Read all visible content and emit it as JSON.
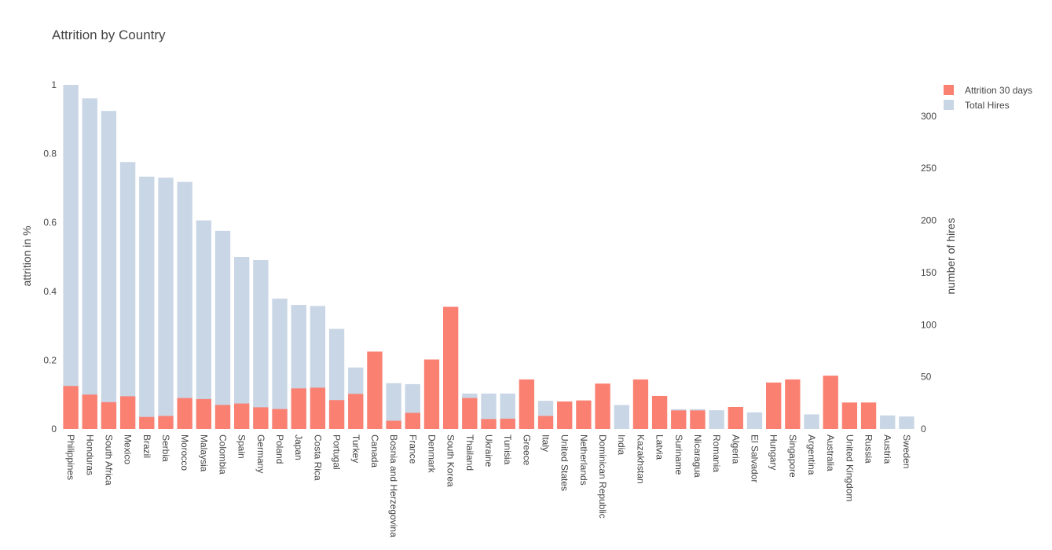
{
  "chart_data": {
    "type": "bar",
    "title": "Attrition by Country",
    "categories": [
      "Philippines",
      "Honduras",
      "South Africa",
      "Mexico",
      "Brazil",
      "Serbia",
      "Morocco",
      "Malaysia",
      "Colombia",
      "Spain",
      "Germany",
      "Poland",
      "Japan",
      "Costa Rica",
      "Portugal",
      "Turkey",
      "Canada",
      "Bosnia and Herzegovina",
      "France",
      "Denmark",
      "South Korea",
      "Thailand",
      "Ukraine",
      "Tunisia",
      "Greece",
      "Italy",
      "United States",
      "Netherlands",
      "Dominican Republic",
      "India",
      "Kazakhstan",
      "Latvia",
      "Suriname",
      "Nicaragua",
      "Romania",
      "Algeria",
      "El Salvador",
      "Hungary",
      "Singapore",
      "Argentina",
      "Australia",
      "United Kingdom",
      "Russia",
      "Austria",
      "Sweden"
    ],
    "series": [
      {
        "name": "Total Hires",
        "axis": "right",
        "color": "#c9d6e5",
        "values": [
          330,
          317,
          305,
          256,
          242,
          241,
          237,
          200,
          190,
          165,
          162,
          125,
          119,
          118,
          96,
          59,
          0,
          44,
          43,
          0,
          0,
          34,
          34,
          34,
          0,
          27,
          0,
          0,
          0,
          23,
          0,
          0,
          19,
          19,
          18,
          0,
          16,
          0,
          0,
          14,
          0,
          0,
          0,
          13,
          12
        ]
      },
      {
        "name": "Attrition 30 days",
        "axis": "left",
        "color": "#fa8072",
        "values": [
          0.125,
          0.1,
          0.078,
          0.095,
          0.035,
          0.038,
          0.09,
          0.087,
          0.07,
          0.074,
          0.063,
          0.058,
          0.118,
          0.12,
          0.084,
          0.102,
          0.225,
          0.024,
          0.047,
          0.202,
          0.355,
          0.09,
          0.029,
          0.03,
          0.144,
          0.038,
          0.08,
          0.083,
          0.132,
          0,
          0.144,
          0.096,
          0.054,
          0.054,
          0,
          0.064,
          0,
          0.135,
          0.144,
          0,
          0.155,
          0.077,
          0.077,
          0,
          0
        ]
      }
    ],
    "y_left": {
      "label": "attrition in %",
      "range": [
        0,
        1
      ],
      "ticks": [
        "0",
        "0.2",
        "0.4",
        "0.6",
        "0.8",
        "1"
      ]
    },
    "y_right": {
      "label": "number of hires",
      "range": [
        0,
        330
      ],
      "ticks": [
        "0",
        "50",
        "100",
        "150",
        "200",
        "250",
        "300"
      ]
    },
    "grid": false,
    "legend_position": "top-right",
    "barmode": "overlay"
  }
}
